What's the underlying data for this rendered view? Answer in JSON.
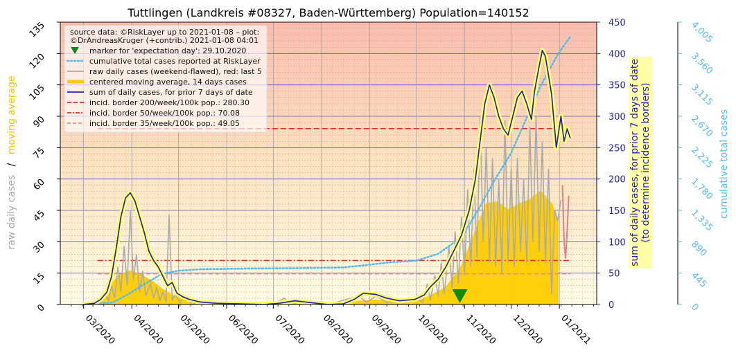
{
  "chart_data": {
    "type": "line",
    "title": "Tuttlingen (Landkreis #08327, Baden-Württemberg) Population=140152",
    "source_line_1": "source data: ©RiskLayer up to 2021-01-08 – plot:",
    "source_line_2": "©DrAndreasKruger (+contrib.) 2021-01-08 04:01",
    "ylabel_left_parts": [
      "raw daily cases",
      "/",
      "moving average"
    ],
    "ylabel_right_1_line1": "sum of daily cases, for prior 7 days of date",
    "ylabel_right_1_line2": "(to determine incidence borders)",
    "ylabel_right_2": "cumulative total cases",
    "x_ticks": [
      "03/2020",
      "04/2020",
      "05/2020",
      "06/2020",
      "07/2020",
      "08/2020",
      "09/2020",
      "10/2020",
      "11/2020",
      "12/2020",
      "01/2021"
    ],
    "y_left_ticks": [
      "0",
      "15",
      "30",
      "45",
      "60",
      "75",
      "90",
      "105",
      "120",
      "135"
    ],
    "y_right1_ticks": [
      "0",
      "50",
      "100",
      "150",
      "200",
      "250",
      "300",
      "350",
      "400",
      "450"
    ],
    "y_right2_ticks": [
      "0",
      "445",
      "890",
      "1,335",
      "1,780",
      "2,225",
      "2,670",
      "3,115",
      "3,560",
      "4,005"
    ],
    "ylim_left": [
      0,
      135
    ],
    "ylim_right1": [
      0,
      450
    ],
    "ylim_right2": [
      0,
      4005
    ],
    "x_start": "2020-02-15",
    "x_end": "2021-01-25",
    "legend": [
      {
        "label": "marker for 'expectation day': 29.10.2020",
        "style": "marker"
      },
      {
        "label": "cumulative total cases reported at RiskLayer",
        "style": "dotted"
      },
      {
        "label": "raw daily cases (weekend-flawed), red: last 5",
        "style": "gray"
      },
      {
        "label": "centered moving average, 14 days cases",
        "style": "thick-yellow"
      },
      {
        "label": "sum of daily cases, for prior 7 days of date",
        "style": "blue"
      },
      {
        "label": "incid. border 200/week/100k pop.: 280.30",
        "style": "dash-red"
      },
      {
        "label": "incid. border 50/week/100k pop.: 70.08",
        "style": "dashdot-red"
      },
      {
        "label": "incid. border 35/week/100k pop.: 49.05",
        "style": "dash-pink"
      }
    ],
    "incidence_borders": [
      280.3,
      70.08,
      49.05
    ],
    "expectation_day": "2020-10-29",
    "colors": {
      "sum7": "#2222bb",
      "raw": "#aaaaaa",
      "raw_last5": "#e08080",
      "moving_avg": "#ffcc00",
      "cumulative": "#55bbee",
      "border200": "#dd3322",
      "border50": "#dd3322",
      "border35": "#ee8888",
      "marker": "#118811",
      "right_axis_1": "#2222bb",
      "right_axis_2": "#55bbee",
      "left_label_gray": "#aaaaaa",
      "left_label_yellow": "#ffcc00"
    },
    "series": [
      {
        "name": "sum of daily cases, for prior 7 days of date",
        "axis": "right1",
        "points": [
          [
            "2020-03-01",
            0
          ],
          [
            "2020-03-08",
            2
          ],
          [
            "2020-03-12",
            8
          ],
          [
            "2020-03-16",
            20
          ],
          [
            "2020-03-19",
            45
          ],
          [
            "2020-03-22",
            90
          ],
          [
            "2020-03-25",
            140
          ],
          [
            "2020-03-28",
            170
          ],
          [
            "2020-03-31",
            178
          ],
          [
            "2020-04-03",
            165
          ],
          [
            "2020-04-06",
            140
          ],
          [
            "2020-04-09",
            115
          ],
          [
            "2020-04-12",
            85
          ],
          [
            "2020-04-15",
            70
          ],
          [
            "2020-04-18",
            60
          ],
          [
            "2020-04-21",
            45
          ],
          [
            "2020-04-24",
            30
          ],
          [
            "2020-04-27",
            35
          ],
          [
            "2020-04-30",
            18
          ],
          [
            "2020-05-04",
            12
          ],
          [
            "2020-05-08",
            8
          ],
          [
            "2020-05-15",
            4
          ],
          [
            "2020-05-25",
            2
          ],
          [
            "2020-06-10",
            1
          ],
          [
            "2020-06-25",
            0
          ],
          [
            "2020-07-05",
            2
          ],
          [
            "2020-07-15",
            6
          ],
          [
            "2020-07-25",
            3
          ],
          [
            "2020-08-05",
            0
          ],
          [
            "2020-08-15",
            1
          ],
          [
            "2020-08-22",
            8
          ],
          [
            "2020-08-28",
            18
          ],
          [
            "2020-09-05",
            16
          ],
          [
            "2020-09-12",
            10
          ],
          [
            "2020-09-20",
            6
          ],
          [
            "2020-09-30",
            8
          ],
          [
            "2020-10-06",
            15
          ],
          [
            "2020-10-10",
            28
          ],
          [
            "2020-10-15",
            40
          ],
          [
            "2020-10-20",
            60
          ],
          [
            "2020-10-25",
            85
          ],
          [
            "2020-10-30",
            110
          ],
          [
            "2020-11-04",
            150
          ],
          [
            "2020-11-08",
            200
          ],
          [
            "2020-11-11",
            260
          ],
          [
            "2020-11-14",
            320
          ],
          [
            "2020-11-17",
            350
          ],
          [
            "2020-11-20",
            330
          ],
          [
            "2020-11-23",
            300
          ],
          [
            "2020-11-26",
            280
          ],
          [
            "2020-11-29",
            270
          ],
          [
            "2020-12-02",
            300
          ],
          [
            "2020-12-05",
            330
          ],
          [
            "2020-12-08",
            340
          ],
          [
            "2020-12-11",
            320
          ],
          [
            "2020-12-14",
            295
          ],
          [
            "2020-12-16",
            340
          ],
          [
            "2020-12-19",
            380
          ],
          [
            "2020-12-21",
            405
          ],
          [
            "2020-12-23",
            395
          ],
          [
            "2020-12-25",
            365
          ],
          [
            "2020-12-27",
            335
          ],
          [
            "2020-12-30",
            250
          ],
          [
            "2021-01-02",
            300
          ],
          [
            "2021-01-04",
            260
          ],
          [
            "2021-01-06",
            280
          ],
          [
            "2021-01-08",
            265
          ]
        ]
      },
      {
        "name": "centered moving average, 14 days cases",
        "axis": "left",
        "points": [
          [
            "2020-03-01",
            0
          ],
          [
            "2020-03-10",
            2
          ],
          [
            "2020-03-17",
            8
          ],
          [
            "2020-03-24",
            14
          ],
          [
            "2020-03-31",
            16
          ],
          [
            "2020-04-07",
            14
          ],
          [
            "2020-04-14",
            11
          ],
          [
            "2020-04-21",
            7
          ],
          [
            "2020-04-28",
            4
          ],
          [
            "2020-05-05",
            2
          ],
          [
            "2020-05-15",
            1
          ],
          [
            "2020-06-01",
            0.3
          ],
          [
            "2020-06-20",
            0.2
          ],
          [
            "2020-07-10",
            0.7
          ],
          [
            "2020-07-25",
            0.4
          ],
          [
            "2020-08-10",
            0.3
          ],
          [
            "2020-08-25",
            1.5
          ],
          [
            "2020-09-05",
            2
          ],
          [
            "2020-09-20",
            1
          ],
          [
            "2020-10-01",
            1.5
          ],
          [
            "2020-10-10",
            4
          ],
          [
            "2020-10-20",
            8
          ],
          [
            "2020-10-30",
            18
          ],
          [
            "2020-11-08",
            35
          ],
          [
            "2020-11-15",
            48
          ],
          [
            "2020-11-22",
            49
          ],
          [
            "2020-11-29",
            45
          ],
          [
            "2020-12-06",
            48
          ],
          [
            "2020-12-13",
            50
          ],
          [
            "2020-12-20",
            54
          ],
          [
            "2020-12-27",
            48
          ],
          [
            "2020-12-31",
            40
          ]
        ]
      },
      {
        "name": "raw daily cases (weekend-flawed), red: last 5",
        "axis": "left",
        "points": [
          [
            "2020-03-10",
            3
          ],
          [
            "2020-03-12",
            1
          ],
          [
            "2020-03-15",
            5
          ],
          [
            "2020-03-17",
            2
          ],
          [
            "2020-03-19",
            9
          ],
          [
            "2020-03-21",
            3
          ],
          [
            "2020-03-23",
            18
          ],
          [
            "2020-03-25",
            6
          ],
          [
            "2020-03-27",
            28
          ],
          [
            "2020-03-29",
            9
          ],
          [
            "2020-03-31",
            45
          ],
          [
            "2020-04-02",
            12
          ],
          [
            "2020-04-04",
            24
          ],
          [
            "2020-04-06",
            6
          ],
          [
            "2020-04-08",
            16
          ],
          [
            "2020-04-10",
            4
          ],
          [
            "2020-04-13",
            10
          ],
          [
            "2020-04-15",
            3
          ],
          [
            "2020-04-17",
            8
          ],
          [
            "2020-04-19",
            2
          ],
          [
            "2020-04-21",
            6
          ],
          [
            "2020-04-23",
            1
          ],
          [
            "2020-04-25",
            43
          ],
          [
            "2020-04-27",
            2
          ],
          [
            "2020-04-29",
            5
          ],
          [
            "2020-05-02",
            1
          ],
          [
            "2020-05-05",
            4
          ],
          [
            "2020-05-10",
            0
          ],
          [
            "2020-05-15",
            2
          ],
          [
            "2020-06-01",
            0
          ],
          [
            "2020-07-01",
            0
          ],
          [
            "2020-07-08",
            3
          ],
          [
            "2020-07-12",
            0
          ],
          [
            "2020-07-20",
            2
          ],
          [
            "2020-08-05",
            0
          ],
          [
            "2020-08-20",
            3
          ],
          [
            "2020-08-25",
            4
          ],
          [
            "2020-08-30",
            1
          ],
          [
            "2020-09-05",
            4
          ],
          [
            "2020-09-12",
            1
          ],
          [
            "2020-09-20",
            2
          ],
          [
            "2020-10-01",
            3
          ],
          [
            "2020-10-05",
            1
          ],
          [
            "2020-10-08",
            10
          ],
          [
            "2020-10-10",
            2
          ],
          [
            "2020-10-13",
            14
          ],
          [
            "2020-10-15",
            4
          ],
          [
            "2020-10-17",
            20
          ],
          [
            "2020-10-19",
            5
          ],
          [
            "2020-10-22",
            28
          ],
          [
            "2020-10-24",
            8
          ],
          [
            "2020-10-26",
            35
          ],
          [
            "2020-10-28",
            10
          ],
          [
            "2020-10-30",
            42
          ],
          [
            "2020-11-01",
            14
          ],
          [
            "2020-11-03",
            55
          ],
          [
            "2020-11-05",
            18
          ],
          [
            "2020-11-07",
            65
          ],
          [
            "2020-11-09",
            22
          ],
          [
            "2020-11-11",
            90
          ],
          [
            "2020-11-13",
            30
          ],
          [
            "2020-11-15",
            75
          ],
          [
            "2020-11-17",
            20
          ],
          [
            "2020-11-19",
            70
          ],
          [
            "2020-11-21",
            18
          ],
          [
            "2020-11-23",
            60
          ],
          [
            "2020-11-25",
            15
          ],
          [
            "2020-11-27",
            88
          ],
          [
            "2020-11-29",
            20
          ],
          [
            "2020-12-01",
            65
          ],
          [
            "2020-12-03",
            18
          ],
          [
            "2020-12-05",
            70
          ],
          [
            "2020-12-07",
            25
          ],
          [
            "2020-12-09",
            60
          ],
          [
            "2020-12-11",
            20
          ],
          [
            "2020-12-13",
            85
          ],
          [
            "2020-12-15",
            30
          ],
          [
            "2020-12-17",
            90
          ],
          [
            "2020-12-19",
            25
          ],
          [
            "2020-12-21",
            78
          ],
          [
            "2020-12-23",
            20
          ],
          [
            "2020-12-25",
            65
          ],
          [
            "2020-12-27",
            5
          ],
          [
            "2020-12-29",
            45
          ],
          [
            "2020-12-31",
            40
          ],
          [
            "2021-01-02",
            50
          ]
        ]
      },
      {
        "name": "raw daily cases, last 5 days",
        "axis": "left",
        "points": [
          [
            "2021-01-03",
            57
          ],
          [
            "2021-01-04",
            30
          ],
          [
            "2021-01-05",
            22
          ],
          [
            "2021-01-06",
            35
          ],
          [
            "2021-01-07",
            52
          ]
        ]
      },
      {
        "name": "cumulative total cases reported at RiskLayer",
        "axis": "right2",
        "points": [
          [
            "2020-03-05",
            0
          ],
          [
            "2020-03-20",
            30
          ],
          [
            "2020-03-30",
            150
          ],
          [
            "2020-04-10",
            300
          ],
          [
            "2020-04-20",
            430
          ],
          [
            "2020-05-01",
            480
          ],
          [
            "2020-05-15",
            500
          ],
          [
            "2020-06-15",
            510
          ],
          [
            "2020-07-15",
            515
          ],
          [
            "2020-08-15",
            525
          ],
          [
            "2020-08-30",
            560
          ],
          [
            "2020-09-15",
            600
          ],
          [
            "2020-10-01",
            620
          ],
          [
            "2020-10-15",
            720
          ],
          [
            "2020-10-30",
            950
          ],
          [
            "2020-11-10",
            1350
          ],
          [
            "2020-11-20",
            1750
          ],
          [
            "2020-12-01",
            2150
          ],
          [
            "2020-12-10",
            2600
          ],
          [
            "2020-12-20",
            3100
          ],
          [
            "2020-12-31",
            3550
          ],
          [
            "2021-01-08",
            3800
          ]
        ]
      }
    ]
  }
}
